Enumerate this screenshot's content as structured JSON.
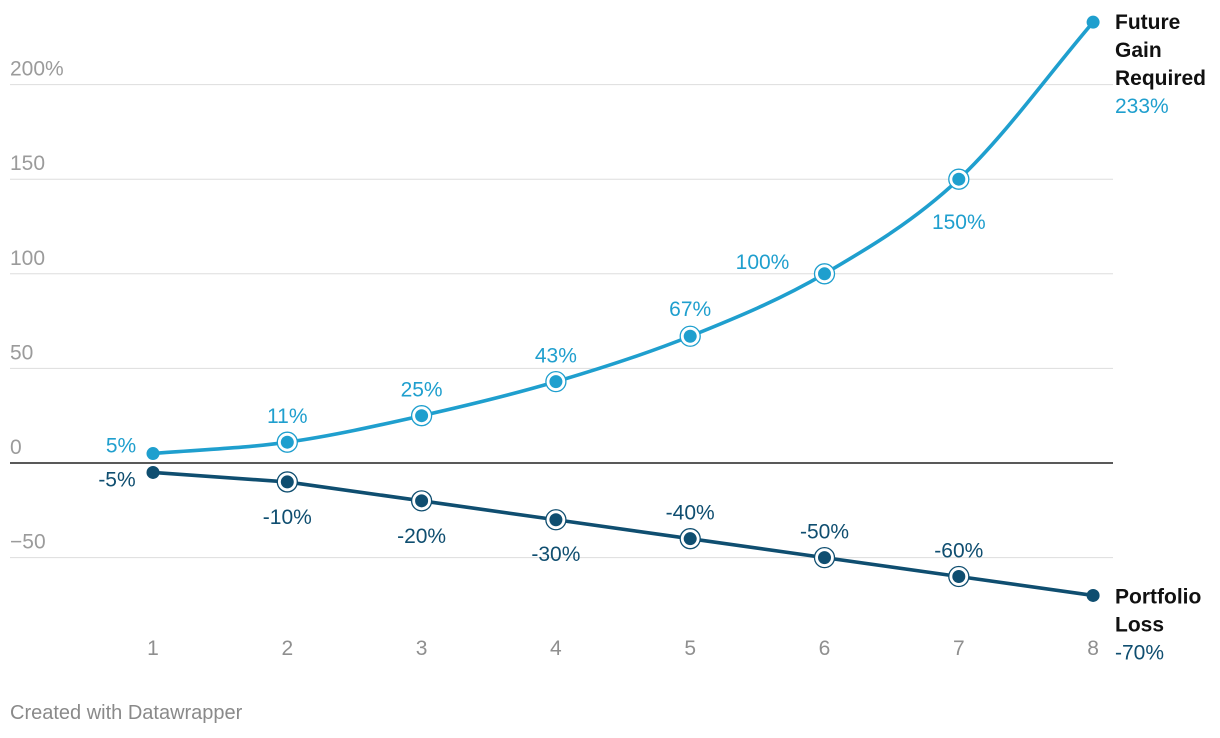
{
  "chart_data": {
    "type": "line",
    "x": [
      1,
      2,
      3,
      4,
      5,
      6,
      7,
      8
    ],
    "x_tick_labels": [
      "1",
      "2",
      "3",
      "4",
      "5",
      "6",
      "7",
      "8"
    ],
    "y_ticks": [
      200,
      150,
      100,
      50,
      0,
      -50
    ],
    "y_tick_labels": [
      "200%",
      "150",
      "100",
      "50",
      "0",
      "−50"
    ],
    "ylim": [
      -70,
      233
    ],
    "grid": true,
    "series": [
      {
        "name": "Future Gain Required",
        "name_lines": [
          "Future",
          "Gain",
          "Required"
        ],
        "color": "#1f9fce",
        "values": [
          5,
          11,
          25,
          43,
          67,
          100,
          150,
          233
        ],
        "data_labels": [
          "5%",
          "11%",
          "25%",
          "43%",
          "67%",
          "100%",
          "150%",
          ""
        ],
        "end_value_label": "233%"
      },
      {
        "name": "Portfolio Loss",
        "name_lines": [
          "Portfolio",
          "Loss"
        ],
        "color": "#0f4e70",
        "values": [
          -5,
          -10,
          -20,
          -30,
          -40,
          -50,
          -60,
          -70
        ],
        "data_labels": [
          "-5%",
          "-10%",
          "-20%",
          "-30%",
          "-40%",
          "-50%",
          "-60%",
          ""
        ],
        "end_value_label": "-70%"
      }
    ]
  },
  "footer": {
    "credit": "Created with Datawrapper"
  },
  "colors": {
    "grid": "#dddddd",
    "zero_line": "#222222",
    "tick_text": "#9b9b9b",
    "label_text_dark": "#111111"
  }
}
